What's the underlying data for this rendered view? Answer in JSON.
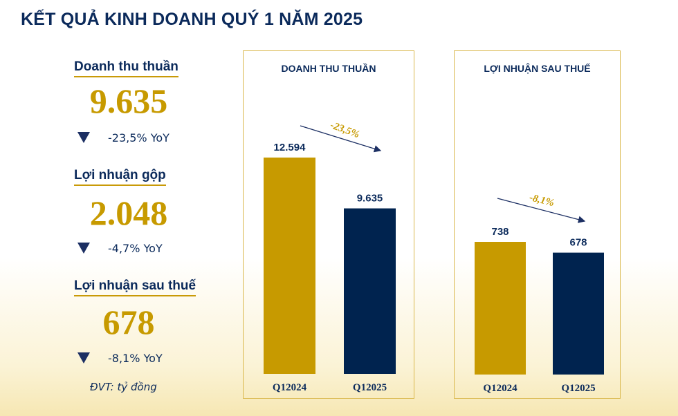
{
  "title": "KẾT QUẢ KINH DOANH QUÝ 1 NĂM 2025",
  "kpis": [
    {
      "label": "Doanh thu thuần",
      "value": "9.635",
      "yoy": "-23,5% YoY",
      "trend": "down"
    },
    {
      "label": "Lợi nhuận gộp",
      "value": "2.048",
      "yoy": "-4,7% YoY",
      "trend": "down"
    },
    {
      "label": "Lợi nhuận sau thuế",
      "value": "678",
      "yoy": "-8,1% YoY",
      "trend": "down"
    }
  ],
  "unit_note": "ĐVT: tỷ đồng",
  "colors": {
    "gold": "#c79a00",
    "navy": "#00234f"
  },
  "chart_data": [
    {
      "type": "bar",
      "title": "DOANH THU THUẦN",
      "categories": [
        "Q12024",
        "Q12025"
      ],
      "values": [
        12594,
        9635
      ],
      "data_labels": [
        "12.594",
        "9.635"
      ],
      "bar_colors": [
        "#c79a00",
        "#00234f"
      ],
      "change_annotation": "-23,5%",
      "ylim": [
        0,
        12594
      ],
      "grid": false
    },
    {
      "type": "bar",
      "title": "LỢI NHUẬN SAU THUẾ",
      "categories": [
        "Q12024",
        "Q12025"
      ],
      "values": [
        738,
        678
      ],
      "data_labels": [
        "738",
        "678"
      ],
      "bar_colors": [
        "#c79a00",
        "#00234f"
      ],
      "change_annotation": "-8,1%",
      "ylim": [
        0,
        738
      ],
      "grid": false
    }
  ]
}
